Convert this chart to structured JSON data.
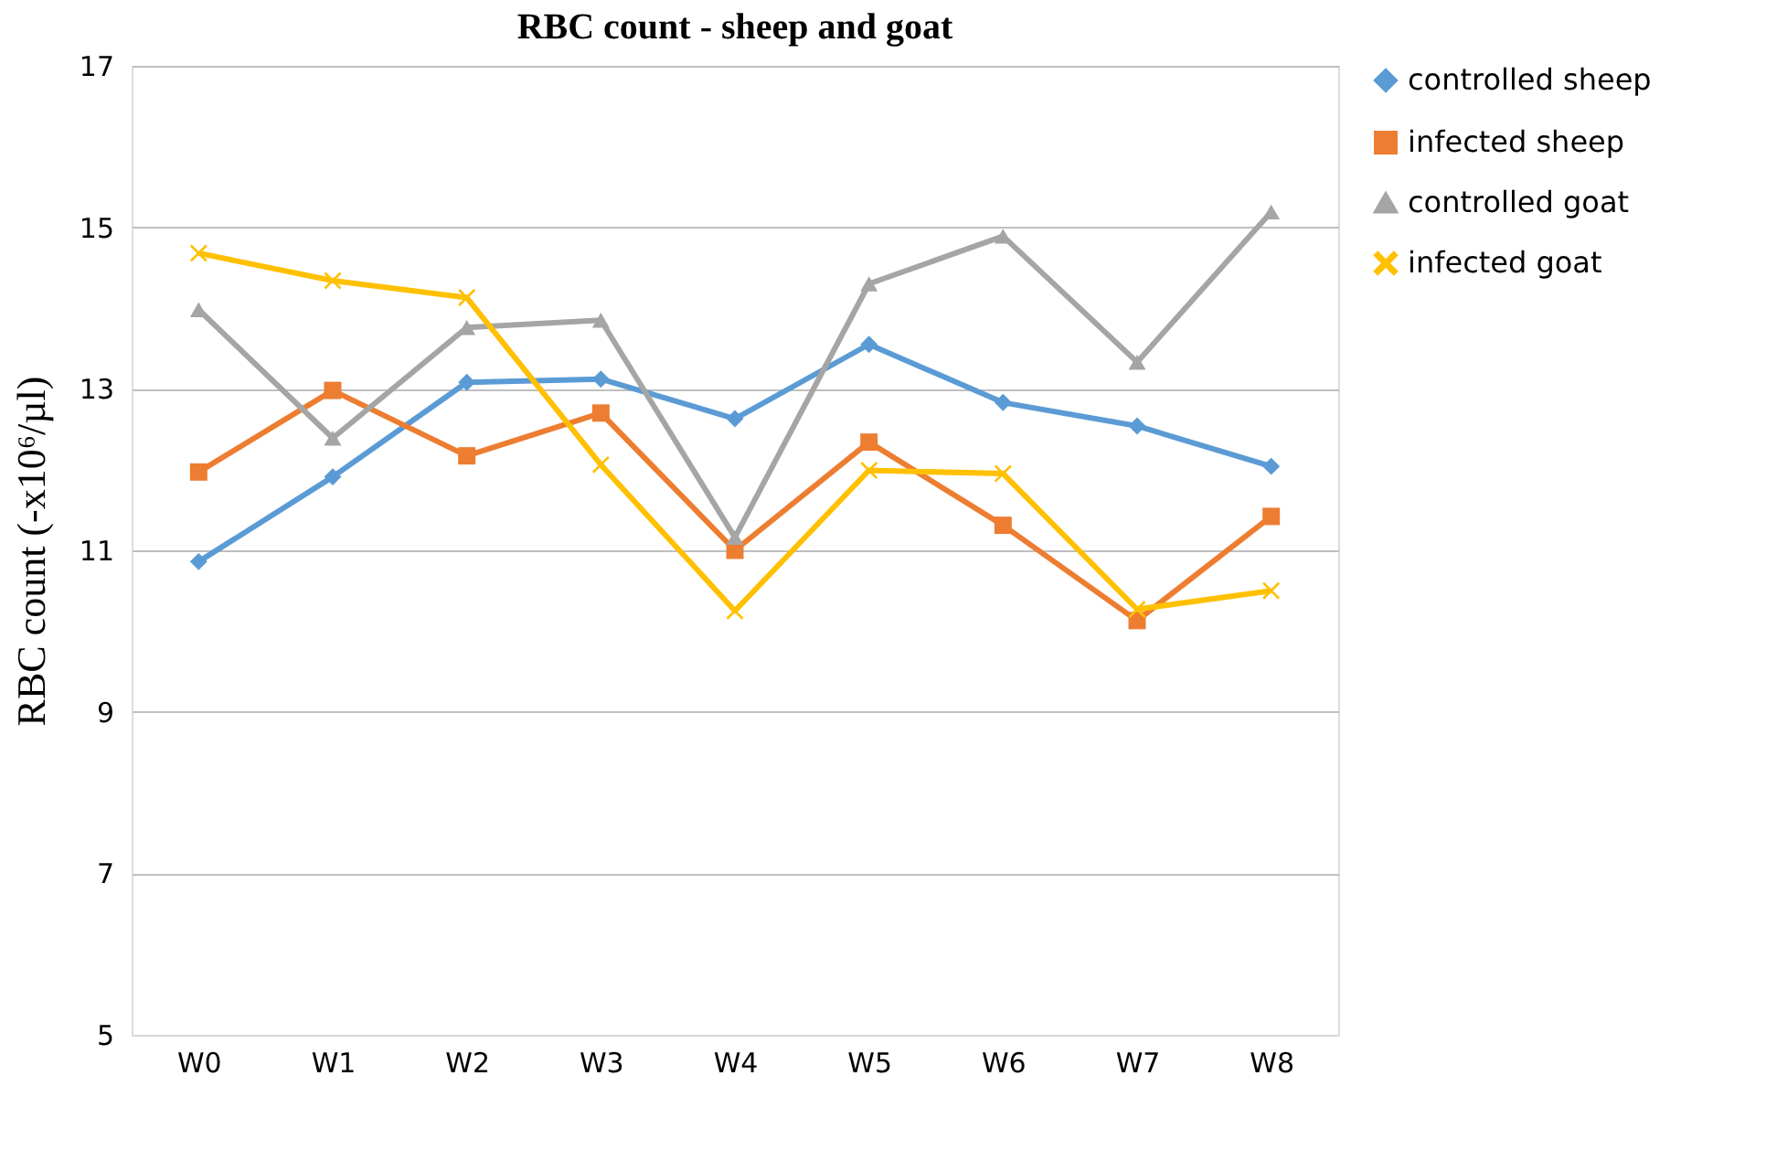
{
  "chart_data": {
    "type": "line",
    "title": "RBC count - sheep and goat",
    "ylabel": "RBC count (-x10⁶/µl)",
    "categories": [
      "W0",
      "W1",
      "W2",
      "W3",
      "W4",
      "W5",
      "W6",
      "W7",
      "W8"
    ],
    "series": [
      {
        "name": "controlled sheep",
        "color": "#5b9bd5",
        "marker": "diamond",
        "values": [
          10.86,
          11.91,
          13.08,
          13.12,
          12.63,
          13.55,
          12.83,
          12.54,
          12.04
        ]
      },
      {
        "name": "infected sheep",
        "color": "#ed7d31",
        "marker": "square",
        "values": [
          11.97,
          12.98,
          12.17,
          12.7,
          11.0,
          12.34,
          11.31,
          10.13,
          11.42
        ]
      },
      {
        "name": "controlled goat",
        "color": "#a5a5a5",
        "marker": "triangle",
        "values": [
          13.98,
          12.39,
          13.76,
          13.85,
          11.16,
          14.3,
          14.89,
          13.33,
          15.19
        ]
      },
      {
        "name": "infected goat",
        "color": "#ffc000",
        "marker": "cross",
        "values": [
          14.68,
          14.34,
          14.13,
          12.06,
          10.25,
          11.99,
          11.95,
          10.27,
          10.5
        ]
      }
    ],
    "ylim": [
      5,
      17
    ],
    "yticks": [
      5,
      7,
      9,
      11,
      13,
      15,
      17
    ],
    "grid": "y",
    "legend": "right",
    "line_style": "solid"
  }
}
